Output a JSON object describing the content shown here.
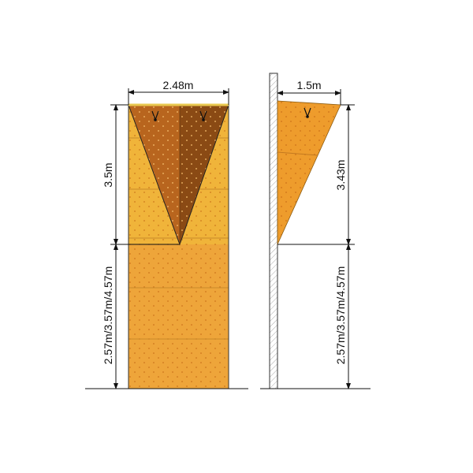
{
  "front_view": {
    "width_label": "2.48m",
    "upper_height_label": "3.5m",
    "lower_height_label": "2.57m/3.57m/4.57m"
  },
  "side_view": {
    "width_label": "1.5m",
    "upper_height_label": "3.43m",
    "lower_height_label": "2.57m/3.57m/4.57m"
  },
  "colors": {
    "wall_yellow": "#f0b43a",
    "overhang_left": "#b8651e",
    "overhang_right": "#8a4a14",
    "side_panel": "#ee9c2c"
  }
}
